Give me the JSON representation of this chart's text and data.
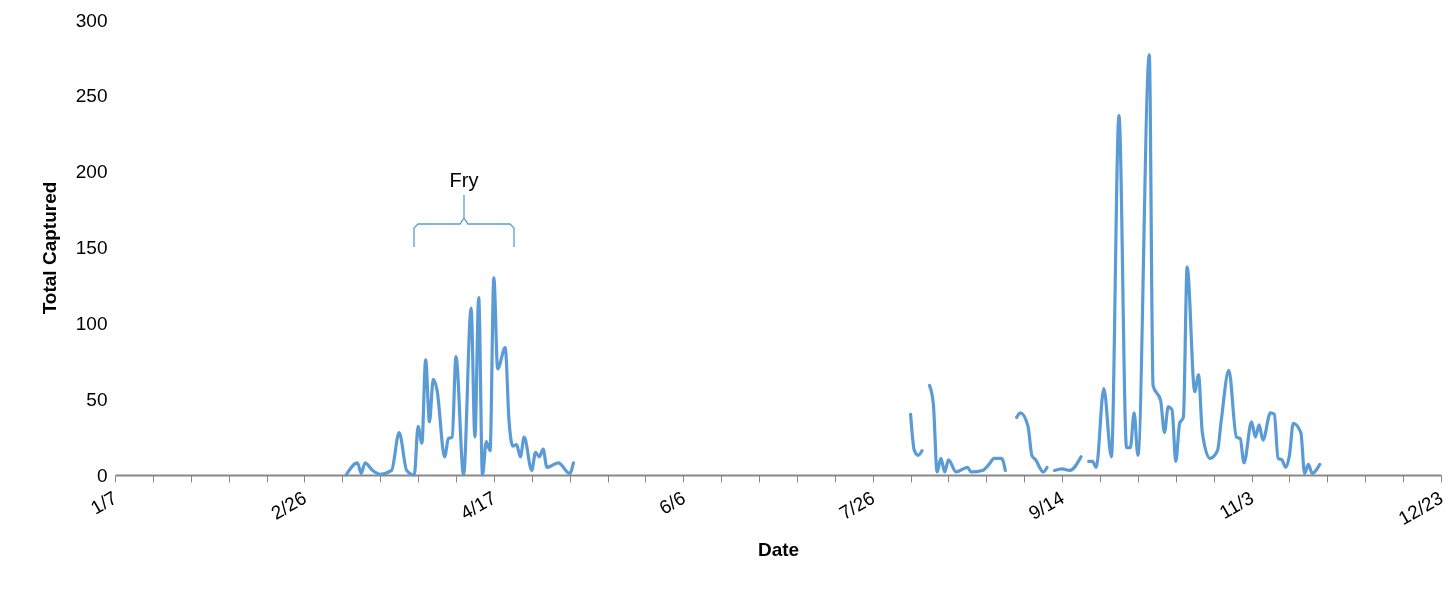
{
  "chart_data": {
    "type": "line",
    "xlabel": "Date",
    "ylabel": "Total Captured",
    "x": [
      "--03-09",
      "--03-12",
      "--03-13",
      "--03-14",
      "--03-16",
      "--03-18",
      "--03-21",
      "--03-23",
      "--03-25",
      "--03-27",
      "--03-28",
      "--03-29",
      "--03-30",
      "--03-31",
      "--04-01",
      "--04-02",
      "--04-04",
      "--04-05",
      "--04-06",
      "--04-07",
      "--04-09",
      "--04-11",
      "--04-12",
      "--04-13",
      "--04-14",
      "--04-15",
      "--04-16",
      "--04-17",
      "--04-18",
      "--04-20",
      "--04-21",
      "--04-22",
      "--04-23",
      "--04-24",
      "--04-25",
      "--04-27",
      "--04-28",
      "--04-29",
      "--04-30",
      "--05-01",
      "--05-04",
      "--05-07",
      "--05-08",
      "--07-01",
      "--08-05",
      "--08-06",
      "--08-07",
      "--08-08",
      "--08-09",
      "--08-10",
      "--08-11",
      "--08-12",
      "--08-13",
      "--08-14",
      "--08-15",
      "--08-17",
      "--08-20",
      "--08-21",
      "--08-24",
      "--08-26",
      "--08-27",
      "--08-29",
      "--08-30",
      "--09-01",
      "--09-02",
      "--09-03",
      "--09-05",
      "--09-06",
      "--09-07",
      "--09-09",
      "--09-10",
      "--09-11",
      "--09-12",
      "--09-14",
      "--09-16",
      "--09-19",
      "--09-20",
      "--09-21",
      "--09-22",
      "--09-23",
      "--09-25",
      "--09-27",
      "--09-29",
      "--10-01",
      "--10-02",
      "--10-03",
      "--10-04",
      "--10-07",
      "--10-08",
      "--10-10",
      "--10-11",
      "--10-12",
      "--10-13",
      "--10-14",
      "--10-15",
      "--10-16",
      "--10-17",
      "--10-19",
      "--10-20",
      "--10-21",
      "--10-23",
      "--10-25",
      "--10-26",
      "--10-28",
      "--10-30",
      "--10-31",
      "--11-01",
      "--11-03",
      "--11-04",
      "--11-05",
      "--11-06",
      "--11-08",
      "--11-09",
      "--11-10",
      "--11-11",
      "--11-12",
      "--11-13",
      "--11-14",
      "--11-16",
      "--11-17",
      "--11-18",
      "--11-19",
      "--11-21"
    ],
    "series": [
      {
        "color": "#5b9bd5",
        "values": [
          0,
          8,
          1,
          8,
          3,
          0.5,
          3,
          28,
          3,
          0,
          32,
          21,
          76,
          35,
          63,
          56,
          12,
          24,
          25,
          78,
          0,
          110,
          25,
          117,
          0,
          22,
          16,
          130,
          70,
          84,
          36,
          19,
          20,
          12,
          25,
          3,
          15,
          12,
          17,
          5,
          8,
          1,
          8,
          null,
          40,
          16,
          13,
          16,
          null,
          59,
          47,
          2,
          11,
          2,
          10,
          2,
          5,
          2,
          3,
          8,
          11,
          11,
          3,
          null,
          38,
          41,
          32,
          13,
          10,
          2,
          5,
          null,
          3,
          4,
          3,
          12,
          null,
          9,
          9,
          5,
          57,
          12,
          237,
          18,
          18,
          41,
          13,
          277,
          59,
          49,
          28,
          45,
          43,
          9,
          34,
          38,
          137,
          55,
          66,
          28,
          11,
          16,
          36,
          69,
          25,
          24,
          8,
          35,
          25,
          33,
          23,
          41,
          40,
          11,
          10,
          5,
          13,
          34,
          28,
          1,
          7,
          1,
          7
        ]
      }
    ],
    "xlim": [
      "--01-07",
      "--12-23"
    ],
    "xticks": [
      {
        "value": "--01-07",
        "label": "1/7"
      },
      {
        "value": "--01-17",
        "label": null
      },
      {
        "value": "--01-27",
        "label": null
      },
      {
        "value": "--02-06",
        "label": null
      },
      {
        "value": "--02-16",
        "label": null
      },
      {
        "value": "--02-26",
        "label": "2/26"
      },
      {
        "value": "--03-08",
        "label": null
      },
      {
        "value": "--03-18",
        "label": null
      },
      {
        "value": "--03-28",
        "label": null
      },
      {
        "value": "--04-07",
        "label": null
      },
      {
        "value": "--04-17",
        "label": "4/17"
      },
      {
        "value": "--04-27",
        "label": null
      },
      {
        "value": "--05-07",
        "label": null
      },
      {
        "value": "--05-17",
        "label": null
      },
      {
        "value": "--05-27",
        "label": null
      },
      {
        "value": "--06-06",
        "label": "6/6"
      },
      {
        "value": "--06-16",
        "label": null
      },
      {
        "value": "--06-26",
        "label": null
      },
      {
        "value": "--07-06",
        "label": null
      },
      {
        "value": "--07-16",
        "label": null
      },
      {
        "value": "--07-26",
        "label": "7/26"
      },
      {
        "value": "--08-05",
        "label": null
      },
      {
        "value": "--08-15",
        "label": null
      },
      {
        "value": "--08-25",
        "label": null
      },
      {
        "value": "--09-04",
        "label": null
      },
      {
        "value": "--09-14",
        "label": "9/14"
      },
      {
        "value": "--09-24",
        "label": null
      },
      {
        "value": "--10-04",
        "label": null
      },
      {
        "value": "--10-14",
        "label": null
      },
      {
        "value": "--10-24",
        "label": null
      },
      {
        "value": "--11-03",
        "label": "11/3"
      },
      {
        "value": "--11-13",
        "label": null
      },
      {
        "value": "--11-23",
        "label": null
      },
      {
        "value": "--12-03",
        "label": null
      },
      {
        "value": "--12-13",
        "label": null
      },
      {
        "value": "--12-23",
        "label": "12/23"
      }
    ],
    "ylim": [
      0,
      300
    ],
    "yticks": [
      0,
      50,
      100,
      150,
      200,
      250,
      300
    ],
    "grid": false,
    "marker": "none",
    "line_style": "solid",
    "annotations": [
      "Fry"
    ]
  }
}
